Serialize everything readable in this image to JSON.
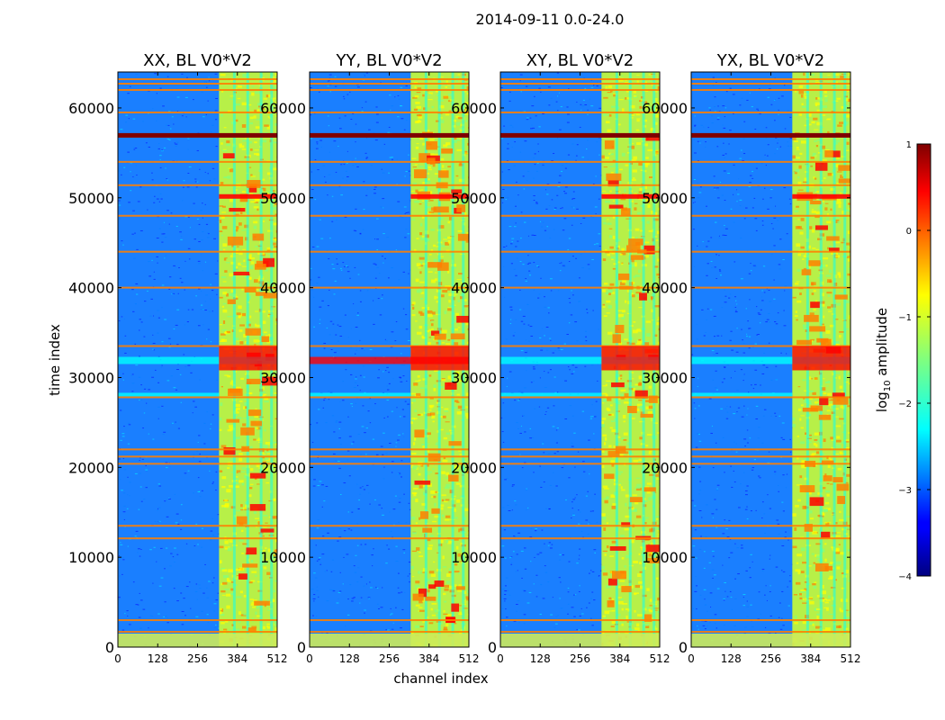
{
  "figure": {
    "suptitle": "2014-09-11 0.0-24.0",
    "xlabel": "channel index",
    "ylabel": "time index"
  },
  "colors": {
    "jet": [
      "#00007f",
      "#0000ff",
      "#007fff",
      "#00ffff",
      "#7fff7f",
      "#ffff00",
      "#ff7f00",
      "#ff0000",
      "#7f0000"
    ],
    "background": "#1a7fff"
  },
  "chart_data": {
    "type": "heatmap",
    "xlim": [
      0,
      512
    ],
    "ylim": [
      0,
      64000
    ],
    "x_ticks": [
      0,
      128,
      256,
      384,
      512
    ],
    "y_ticks": [
      0,
      10000,
      20000,
      30000,
      40000,
      50000,
      60000
    ],
    "y_tick_labels": [
      "0",
      "10000",
      "20000",
      "30000",
      "40000",
      "50000",
      "60000"
    ],
    "panels": [
      {
        "title": "XX, BL V0*V2"
      },
      {
        "title": "YY, BL V0*V2"
      },
      {
        "title": "XY, BL V0*V2"
      },
      {
        "title": "YX, BL V0*V2"
      }
    ],
    "rfi_band_channels": [
      325,
      512
    ],
    "colorbar": {
      "label": "log",
      "label_sub": "10",
      "label_rest": " amplitude",
      "ticks": [
        1,
        0,
        -1,
        -2,
        -3,
        -4
      ],
      "tick_labels": [
        "1",
        "0",
        "−1",
        "−2",
        "−3",
        "−4"
      ],
      "range": [
        -4,
        1
      ]
    }
  }
}
